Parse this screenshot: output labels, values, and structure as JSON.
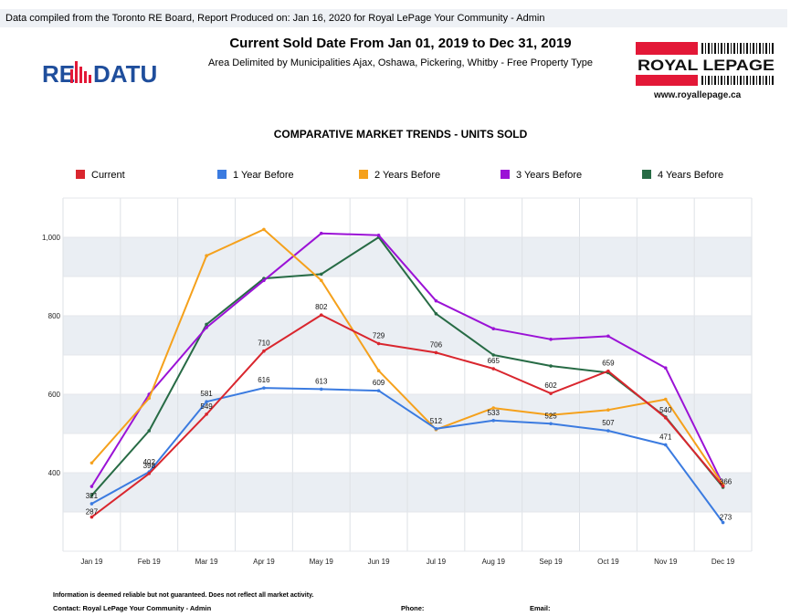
{
  "header": {
    "compiled_text": "Data compiled from the Toronto RE Board, Report Produced on: Jan 16, 2020 for Royal LePage Your Community -  Admin",
    "title": "Current Sold Date From Jan 01, 2019 to Dec 31, 2019",
    "subtitle": "Area Delimited by Municipalities Ajax, Oshawa, Pickering, Whitby - Free Property Type"
  },
  "logos": {
    "left_text_a": "RE",
    "left_text_b": "DATUM",
    "right_brand": "ROYAL LEPAGE",
    "right_url": "www.royallepage.ca",
    "left_color": "#1f4e9c",
    "right_color": "#e31837"
  },
  "footer": {
    "note": "Information is deemed reliable but not guaranteed. Does not reflect all market activity.",
    "contact": "Contact: Royal LePage Your Community -  Admin",
    "phone": "Phone:",
    "email": "Email:"
  },
  "chart_data": {
    "type": "line",
    "title": "COMPARATIVE MARKET TRENDS - UNITS SOLD",
    "categories": [
      "Jan 19",
      "Feb 19",
      "Mar 19",
      "Apr 19",
      "May 19",
      "Jun 19",
      "Jul 19",
      "Aug 19",
      "Sep 19",
      "Oct 19",
      "Nov 19",
      "Dec 19"
    ],
    "ylim": [
      200,
      1100
    ],
    "yticks": [
      400,
      600,
      800,
      1000
    ],
    "ytick_labels": [
      "400",
      "600",
      "800",
      "1,000"
    ],
    "grid": true,
    "legend_position": "top",
    "series": [
      {
        "name": "Current",
        "color": "#d9262e",
        "values": [
          287,
          398,
          549,
          710,
          802,
          729,
          706,
          665,
          602,
          659,
          540,
          366
        ],
        "labels": [
          "287",
          "398",
          "549",
          "710",
          "802",
          "729",
          "706",
          "665",
          "602",
          "659",
          "540",
          "366"
        ]
      },
      {
        "name": "1 Year Before",
        "color": "#3b7be0",
        "values": [
          321,
          402,
          581,
          616,
          613,
          609,
          512,
          533,
          525,
          507,
          471,
          273
        ],
        "labels": [
          "321",
          "402",
          "581",
          "616",
          "613",
          "609",
          "512",
          "533",
          "525",
          "507",
          "471",
          "273"
        ]
      },
      {
        "name": "2 Years Before",
        "color": "#f5a11c",
        "values": [
          425,
          590,
          953,
          1020,
          890,
          660,
          510,
          565,
          547,
          560,
          587,
          370
        ],
        "labels": []
      },
      {
        "name": "3 Years Before",
        "color": "#9b12d6",
        "values": [
          365,
          600,
          770,
          890,
          1010,
          1005,
          838,
          767,
          740,
          748,
          667,
          370
        ],
        "labels": []
      },
      {
        "name": "4 Years Before",
        "color": "#276b45",
        "values": [
          342,
          507,
          778,
          895,
          906,
          1000,
          805,
          700,
          672,
          655,
          542,
          363
        ],
        "labels": []
      }
    ]
  }
}
